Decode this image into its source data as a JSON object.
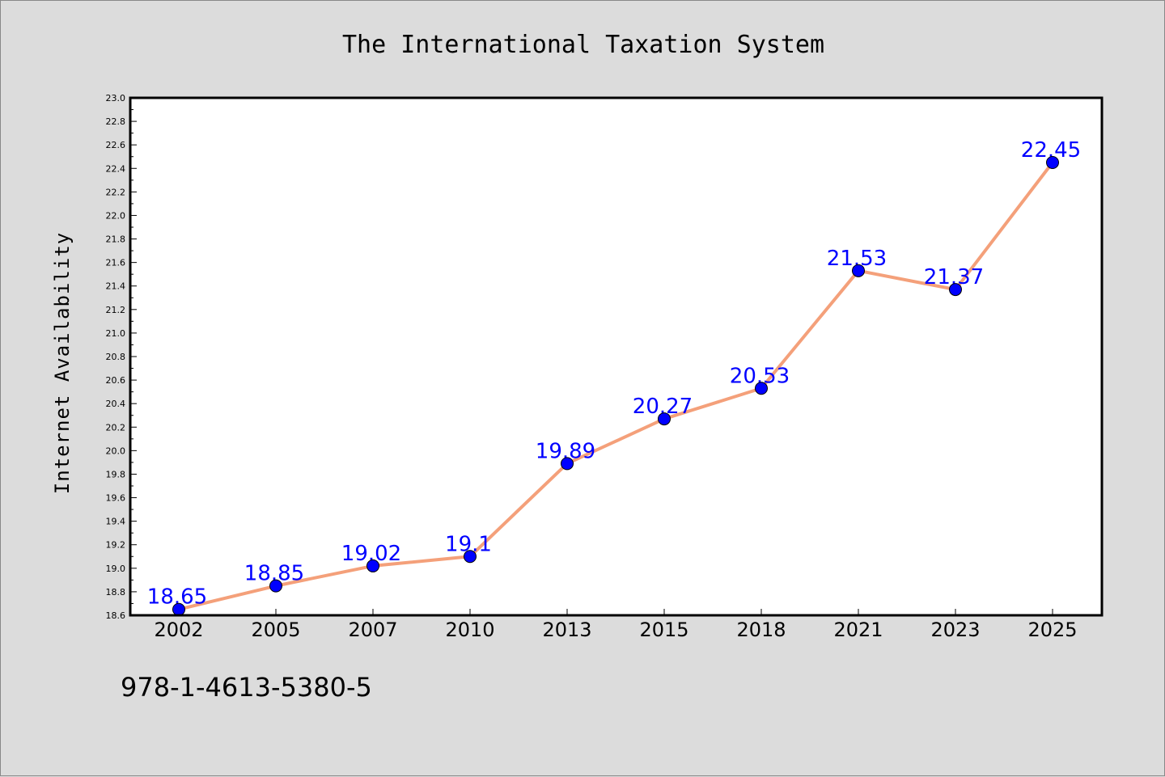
{
  "chart_data": {
    "type": "line",
    "title": "The International Taxation System",
    "xlabel": "",
    "ylabel": "Internet Availability",
    "categories": [
      "2002",
      "2005",
      "2007",
      "2010",
      "2013",
      "2015",
      "2018",
      "2021",
      "2023",
      "2025"
    ],
    "values": [
      18.65,
      18.85,
      19.02,
      19.1,
      19.89,
      20.27,
      20.53,
      21.53,
      21.37,
      22.45
    ],
    "data_labels": [
      "18.65",
      "18.85",
      "19.02",
      "19.1",
      "19.89",
      "20.27",
      "20.53",
      "21.53",
      "21.37",
      "22.45"
    ],
    "ylim": [
      18.6,
      23.0
    ],
    "yticks": [
      "18.6",
      "18.8",
      "19.0",
      "19.2",
      "19.4",
      "19.6",
      "19.8",
      "20.0",
      "20.2",
      "20.4",
      "20.6",
      "20.8",
      "21.0",
      "21.2",
      "21.4",
      "21.6",
      "21.8",
      "22.0",
      "22.2",
      "22.4",
      "22.6",
      "22.8",
      "23.0"
    ],
    "grid": false,
    "colors": {
      "line": "#f4a07a",
      "marker": "#0000ff",
      "label": "#0000ff",
      "background": "#dcdcdc",
      "plot_background": "#ffffff"
    }
  },
  "footer": {
    "code": "978-1-4613-5380-5"
  }
}
